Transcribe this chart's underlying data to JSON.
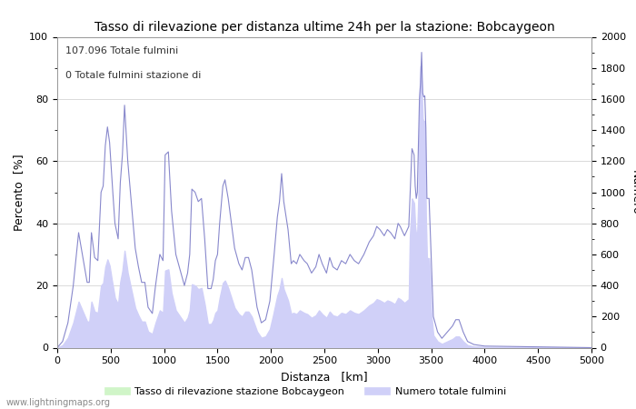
{
  "title": "Tasso di rilevazione per distanza ultime 24h per la stazione: Bobcaygeon",
  "xlabel": "Distanza   [km]",
  "ylabel_left": "Percento  [%]",
  "ylabel_right": "Numero",
  "annotation_line1": "107.096 Totale fulmini",
  "annotation_line2": "0 Totale fulmini stazione di",
  "legend_label1": "Tasso di rilevazione stazione Bobcaygeon",
  "legend_label2": "Numero totale fulmini",
  "footer": "www.lightningmaps.org",
  "xlim": [
    0,
    5000
  ],
  "ylim_left": [
    0,
    100
  ],
  "ylim_right": [
    0,
    2000
  ],
  "xticks": [
    0,
    500,
    1000,
    1500,
    2000,
    2500,
    3000,
    3500,
    4000,
    4500,
    5000
  ],
  "yticks_left": [
    0,
    20,
    40,
    60,
    80,
    100
  ],
  "yticks_right": [
    0,
    200,
    400,
    600,
    800,
    1000,
    1200,
    1400,
    1600,
    1800,
    2000
  ],
  "fill_color_green": "#d0f5c8",
  "fill_color_blue": "#d0d0f8",
  "line_color": "#8888cc",
  "background_color": "#ffffff",
  "grid_color": "#cccccc",
  "title_fontsize": 10,
  "axis_fontsize": 9,
  "tick_fontsize": 8,
  "annotation_fontsize": 8,
  "footer_fontsize": 7
}
